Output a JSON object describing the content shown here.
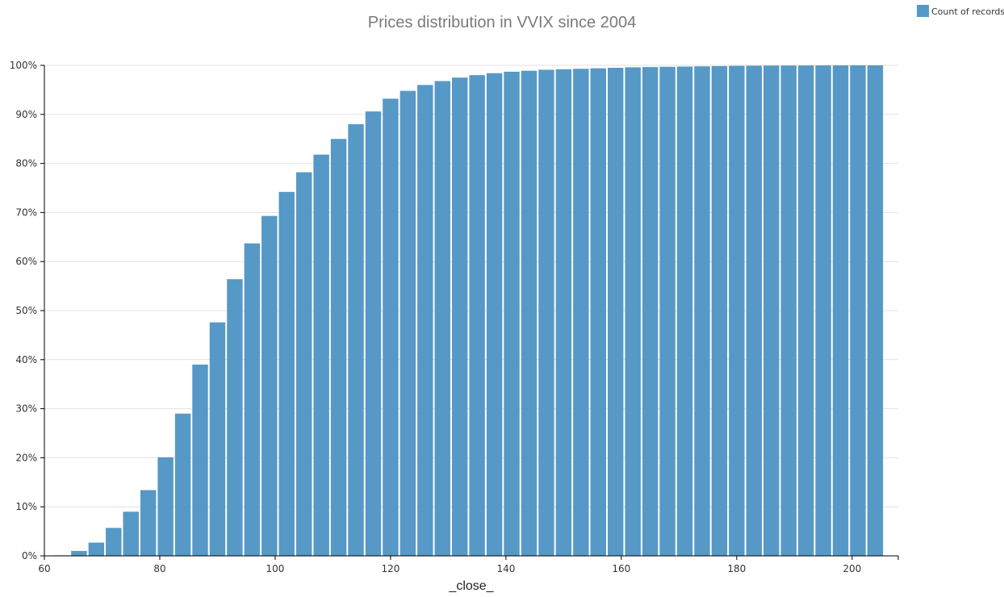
{
  "chart_data": {
    "type": "bar",
    "title": "Prices distribution in VVIX since 2004",
    "xlabel": "_close_",
    "ylabel": "",
    "legend": {
      "label": "Count of records",
      "position": "top-right"
    },
    "color": "#5699c6",
    "grid": true,
    "bin_width": 3,
    "xlim": [
      60,
      208
    ],
    "ylim": [
      0,
      100
    ],
    "x_ticks": [
      "60",
      "80",
      "100",
      "120",
      "140",
      "160",
      "180",
      "200"
    ],
    "y_ticks": [
      "0%",
      "10%",
      "20%",
      "30%",
      "40%",
      "50%",
      "60%",
      "70%",
      "80%",
      "90%",
      "100%"
    ],
    "x": [
      63,
      66,
      69,
      72,
      75,
      78,
      81,
      84,
      87,
      90,
      93,
      96,
      99,
      102,
      105,
      108,
      111,
      114,
      117,
      120,
      123,
      126,
      129,
      132,
      135,
      138,
      141,
      144,
      147,
      150,
      153,
      156,
      159,
      162,
      165,
      168,
      171,
      174,
      177,
      180,
      183,
      186,
      189,
      192,
      195,
      198,
      201,
      204
    ],
    "values": [
      0.1,
      1.0,
      2.7,
      5.7,
      9.0,
      13.4,
      20.1,
      29.0,
      39.0,
      47.6,
      56.4,
      63.7,
      69.3,
      74.2,
      78.2,
      81.8,
      85.0,
      88.0,
      90.6,
      93.2,
      94.8,
      96.0,
      96.8,
      97.5,
      98.0,
      98.4,
      98.7,
      98.9,
      99.1,
      99.2,
      99.3,
      99.4,
      99.5,
      99.6,
      99.65,
      99.7,
      99.75,
      99.8,
      99.85,
      99.9,
      99.92,
      99.95,
      99.96,
      99.98,
      99.99,
      100,
      100,
      100
    ]
  }
}
